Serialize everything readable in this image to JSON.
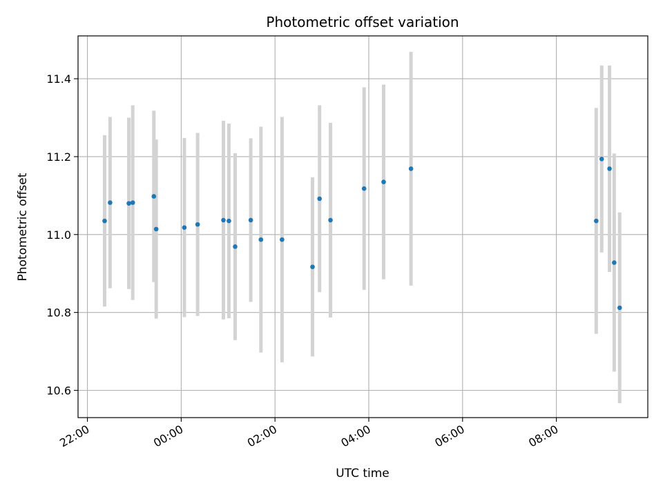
{
  "chart_data": {
    "type": "scatter",
    "title": "Photometric offset variation",
    "xlabel": "UTC time",
    "ylabel": "Photometric offset",
    "x_unit": "hours (UTC, continuing past midnight)",
    "xlim": [
      "21:48",
      "09:57"
    ],
    "ylim": [
      10.53,
      11.51
    ],
    "grid": true,
    "x_ticks": [
      "22:00",
      "00:00",
      "02:00",
      "04:00",
      "06:00",
      "08:00"
    ],
    "y_ticks": [
      "10.6",
      "10.8",
      "11.0",
      "11.2",
      "11.4"
    ],
    "colors": {
      "point": "#1f77b4",
      "errorbar": "#d3d3d3",
      "grid": "#b0b0b0",
      "axes": "#000000"
    },
    "series": [
      {
        "points": [
          {
            "x": "22:22",
            "y": 11.035,
            "yerr": 0.22
          },
          {
            "x": "22:29",
            "y": 11.082,
            "yerr": 0.22
          },
          {
            "x": "22:53",
            "y": 11.08,
            "yerr": 0.22
          },
          {
            "x": "22:58",
            "y": 11.082,
            "yerr": 0.25
          },
          {
            "x": "23:25",
            "y": 11.098,
            "yerr": 0.22
          },
          {
            "x": "23:28",
            "y": 11.014,
            "yerr": 0.23
          },
          {
            "x": "00:04",
            "y": 11.018,
            "yerr": 0.23
          },
          {
            "x": "00:21",
            "y": 11.026,
            "yerr": 0.235
          },
          {
            "x": "00:54",
            "y": 11.037,
            "yerr": 0.255
          },
          {
            "x": "01:01",
            "y": 11.035,
            "yerr": 0.25
          },
          {
            "x": "01:09",
            "y": 10.969,
            "yerr": 0.24
          },
          {
            "x": "01:29",
            "y": 11.037,
            "yerr": 0.21
          },
          {
            "x": "01:42",
            "y": 10.987,
            "yerr": 0.29
          },
          {
            "x": "02:09",
            "y": 10.987,
            "yerr": 0.315
          },
          {
            "x": "02:48",
            "y": 10.917,
            "yerr": 0.23
          },
          {
            "x": "02:57",
            "y": 11.092,
            "yerr": 0.24
          },
          {
            "x": "03:11",
            "y": 11.037,
            "yerr": 0.25
          },
          {
            "x": "03:54",
            "y": 11.118,
            "yerr": 0.26
          },
          {
            "x": "04:19",
            "y": 11.135,
            "yerr": 0.25
          },
          {
            "x": "04:54",
            "y": 11.169,
            "yerr": 0.3
          },
          {
            "x": "08:51",
            "y": 11.035,
            "yerr": 0.29
          },
          {
            "x": "08:58",
            "y": 11.194,
            "yerr": 0.24
          },
          {
            "x": "09:08",
            "y": 11.169,
            "yerr": 0.265
          },
          {
            "x": "09:14",
            "y": 10.928,
            "yerr": 0.28
          },
          {
            "x": "09:21",
            "y": 10.812,
            "yerr": 0.245
          }
        ]
      }
    ]
  }
}
